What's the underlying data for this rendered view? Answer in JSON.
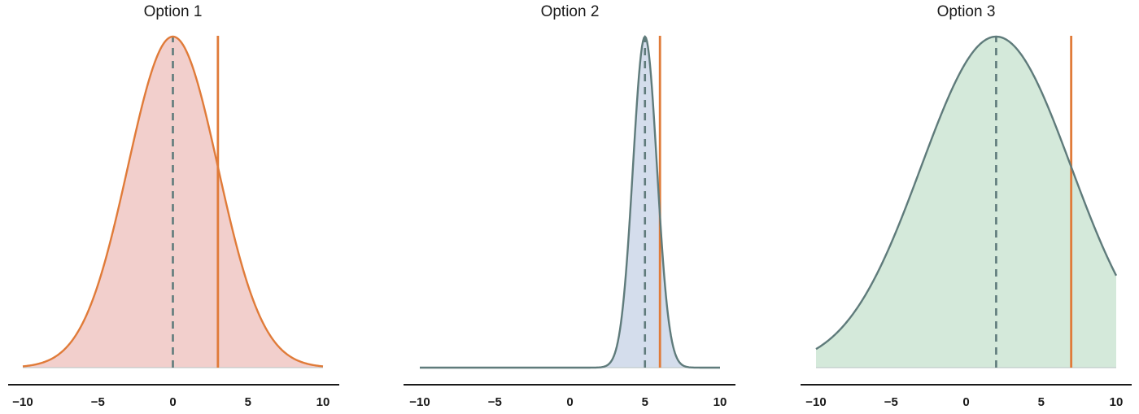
{
  "colors": {
    "orange": "#e07b39",
    "slate": "#5f7b7b",
    "axis": "#1a1a1a"
  },
  "chart_data": [
    {
      "type": "area",
      "title": "Option 1",
      "distribution": "normal",
      "mean": 0,
      "sd": 3,
      "x_range": [
        -10,
        10
      ],
      "xticks": [
        -10,
        -5,
        0,
        5,
        10
      ],
      "xtick_labels": [
        "−10",
        "−5",
        "0",
        "5",
        "10"
      ],
      "mean_line": 0,
      "marker_line": 3,
      "fill_color": "#f2cfcc",
      "curve_color": "#e07b39",
      "grid": false
    },
    {
      "type": "area",
      "title": "Option 2",
      "distribution": "normal",
      "mean": 5,
      "sd": 0.8,
      "x_range": [
        -10,
        10
      ],
      "xticks": [
        -10,
        -5,
        0,
        5,
        10
      ],
      "xtick_labels": [
        "−10",
        "−5",
        "0",
        "5",
        "10"
      ],
      "mean_line": 5,
      "marker_line": 6,
      "fill_color": "#d4ddec",
      "curve_color": "#5f7b7b",
      "grid": false
    },
    {
      "type": "area",
      "title": "Option 3",
      "distribution": "normal",
      "mean": 2,
      "sd": 5,
      "x_range": [
        -10,
        10
      ],
      "xticks": [
        -10,
        -5,
        0,
        5,
        10
      ],
      "xtick_labels": [
        "−10",
        "−5",
        "0",
        "5",
        "10"
      ],
      "mean_line": 2,
      "marker_line": 7,
      "fill_color": "#d4e9da",
      "curve_color": "#5f7b7b",
      "grid": false
    }
  ]
}
